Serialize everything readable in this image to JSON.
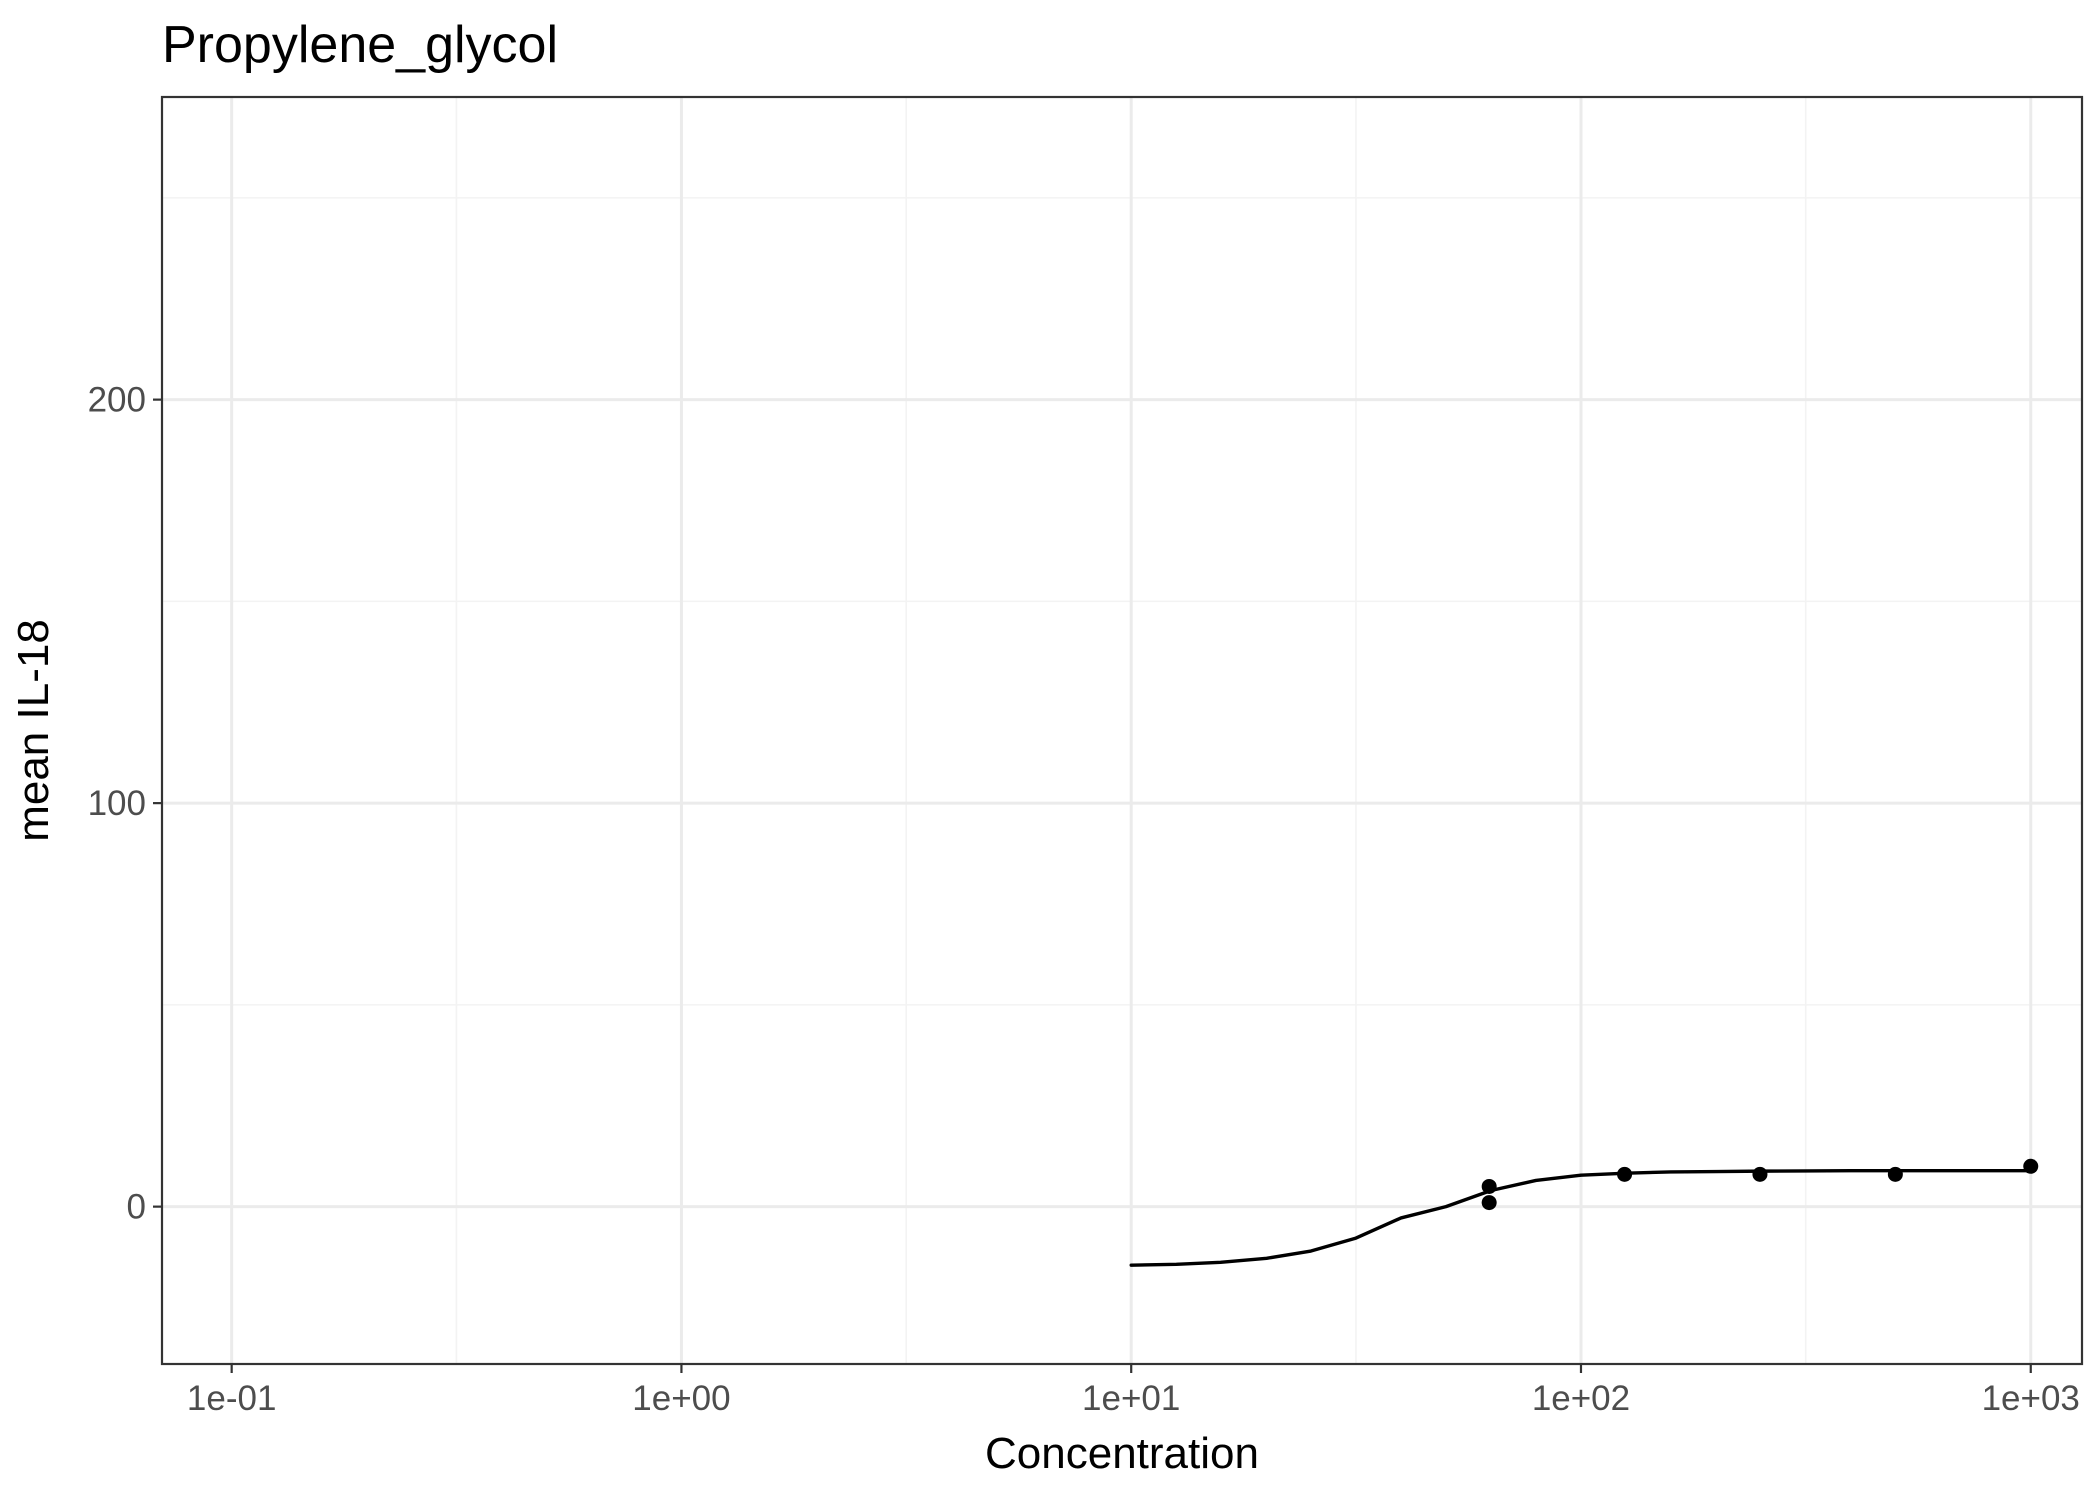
{
  "chart_data": {
    "type": "scatter",
    "title": "Propylene_glycol",
    "xlabel": "Concentration",
    "ylabel": "mean IL-18",
    "x_scale": "log10",
    "xlim": [
      0.07,
      1300
    ],
    "ylim": [
      -39,
      275
    ],
    "x_ticks": [
      {
        "value": 0.1,
        "label": "1e-01"
      },
      {
        "value": 1,
        "label": "1e+00"
      },
      {
        "value": 10,
        "label": "1e+01"
      },
      {
        "value": 100,
        "label": "1e+02"
      },
      {
        "value": 1000,
        "label": "1e+03"
      }
    ],
    "y_ticks": [
      {
        "value": 0,
        "label": "0"
      },
      {
        "value": 100,
        "label": "100"
      },
      {
        "value": 200,
        "label": "200"
      }
    ],
    "x_minor_gridlines": [
      0.316,
      3.16,
      31.6,
      316
    ],
    "y_minor_gridlines": [
      50,
      150,
      250
    ],
    "grid": true,
    "legend": "none",
    "series": [
      {
        "kind": "points",
        "x": [
          62.5,
          62.5,
          125,
          250,
          500,
          1000
        ],
        "y": [
          5,
          1,
          8,
          8,
          8,
          10
        ]
      },
      {
        "kind": "fitted_curve",
        "x": [
          10,
          12.6,
          15.8,
          20,
          25.1,
          31.6,
          39.8,
          50.1,
          63.1,
          79.4,
          100,
          126,
          158,
          200,
          251,
          316,
          398,
          501,
          631,
          794,
          1000
        ],
        "y": [
          -14.5,
          -14.3,
          -13.8,
          -12.8,
          -11,
          -7.8,
          -2.8,
          0,
          4,
          6.5,
          7.8,
          8.3,
          8.6,
          8.7,
          8.8,
          8.85,
          8.9,
          8.9,
          8.9,
          8.9,
          8.9
        ]
      }
    ],
    "colors": {
      "points": "#000000",
      "curve": "#000000",
      "panel_border": "#333333",
      "grid_major": "#ebebeb",
      "grid_minor": "#f3f3f3",
      "tick_label": "#4d4d4d"
    }
  }
}
